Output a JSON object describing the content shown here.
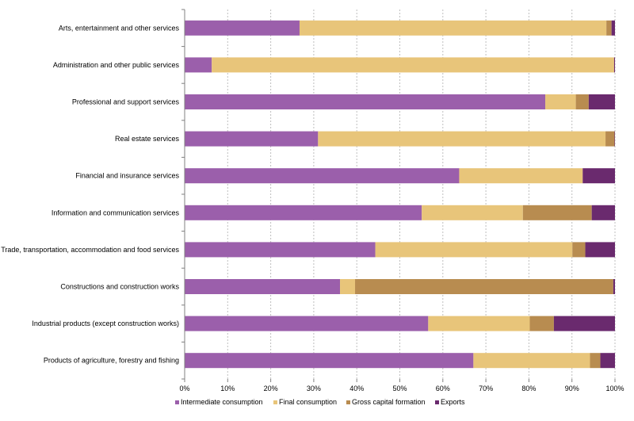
{
  "chart_data": {
    "type": "bar",
    "orientation": "horizontal",
    "stacked": true,
    "title": "",
    "xlabel": "",
    "ylabel": "",
    "xlim": [
      0,
      100
    ],
    "x_ticks": [
      "0%",
      "10%",
      "20%",
      "30%",
      "40%",
      "50%",
      "60%",
      "70%",
      "80%",
      "90%",
      "100%"
    ],
    "grid": true,
    "legend_position": "bottom",
    "categories": [
      "Arts, entertainment and other services",
      "Administration and other public services",
      "Professional and support services",
      "Real estate services",
      "Financial and insurance services",
      "Information and communication services",
      "Trade, transportation, accommodation and food services",
      "Constructions and construction works",
      "Industrial products (except construction works)",
      "Products of agriculture, forestry and fishing"
    ],
    "series": [
      {
        "name": "Intermediate consumption",
        "color": "#9b5fab",
        "values": [
          26.7,
          6.3,
          83.8,
          31.0,
          63.8,
          55.1,
          44.3,
          36.1,
          56.6,
          67.1
        ]
      },
      {
        "name": "Final consumption",
        "color": "#e8c57a",
        "values": [
          71.3,
          93.5,
          7.1,
          66.8,
          28.7,
          23.5,
          45.8,
          3.5,
          23.6,
          27.1
        ]
      },
      {
        "name": "Gross capital formation",
        "color": "#b88c50",
        "values": [
          1.2,
          0.0,
          3.0,
          2.1,
          0.0,
          16.0,
          3.0,
          60.0,
          5.6,
          2.4
        ]
      },
      {
        "name": "Exports",
        "color": "#6a2a6e",
        "values": [
          0.8,
          0.2,
          6.1,
          0.1,
          7.5,
          5.4,
          6.9,
          0.4,
          14.2,
          3.4
        ]
      }
    ]
  }
}
